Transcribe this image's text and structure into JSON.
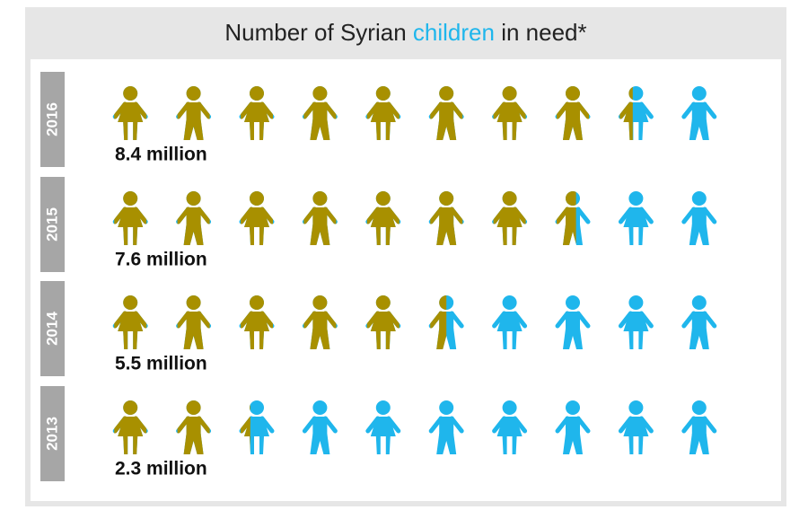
{
  "chart_data": {
    "type": "pictogram",
    "title": "Number of Syrian",
    "title_highlight": "children",
    "title_end": "in need*",
    "categories": [
      "2016",
      "2015",
      "2014",
      "2013"
    ],
    "values": [
      8.4,
      7.6,
      5.5,
      2.3
    ],
    "value_labels": [
      "8.4 million",
      "7.6 million",
      "5.5 million",
      "2.3 million"
    ],
    "xlim": [
      0,
      10
    ],
    "color": "#a89000",
    "background_color": "#1fb6ec"
  }
}
